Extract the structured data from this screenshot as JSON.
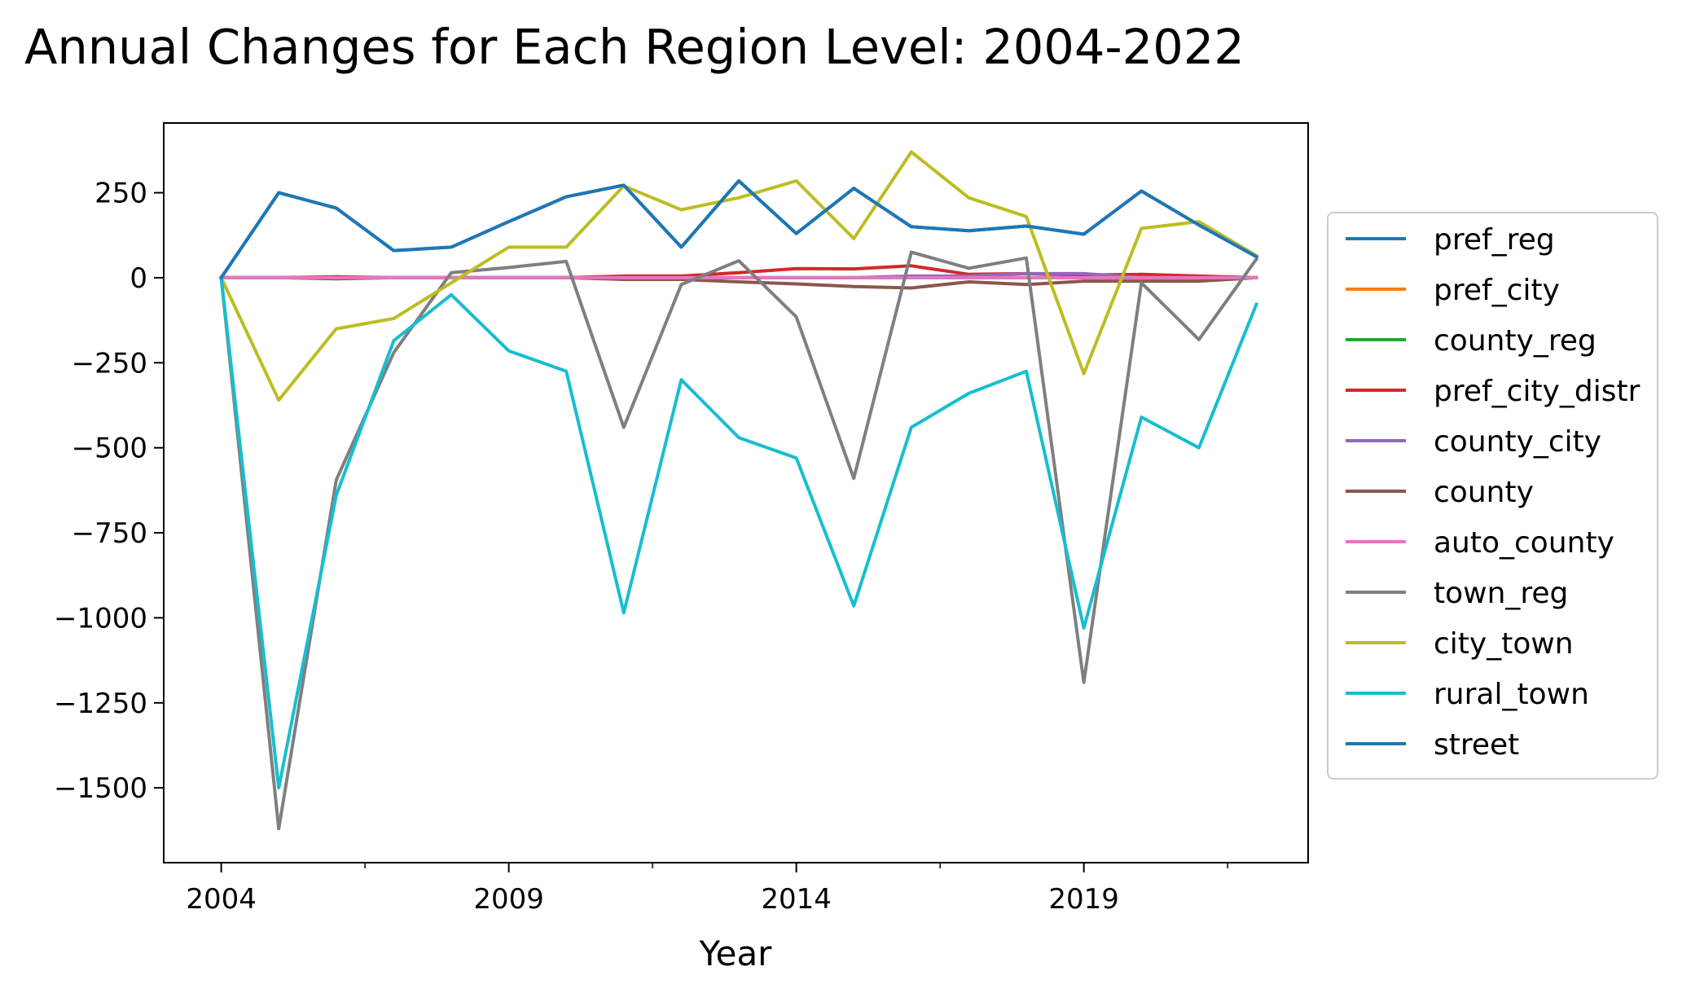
{
  "chart_data": {
    "type": "line",
    "title": "Annual Changes for Each Region Level: 2004-2022",
    "xlabel": "Year",
    "ylabel": "",
    "xlim": [
      2003,
      2022.9
    ],
    "ylim": [
      -1720,
      455
    ],
    "x_ticks": [
      2004,
      2009,
      2014,
      2019
    ],
    "x_minor_ticks": [
      2006.5,
      2011.5,
      2016.5,
      2021.5
    ],
    "y_ticks": [
      250,
      0,
      -250,
      -500,
      -750,
      -1000,
      -1250,
      -1500
    ],
    "y_tick_labels": [
      "250",
      "0",
      "−250",
      "−500",
      "−750",
      "−1000",
      "−1250",
      "−1500"
    ],
    "grid": false,
    "legend_position": "right (outside)",
    "x": [
      2004,
      2005,
      2006,
      2007,
      2008,
      2009,
      2010,
      2011,
      2012,
      2013,
      2014,
      2015,
      2016,
      2017,
      2018,
      2019,
      2020,
      2021,
      2022
    ],
    "series": [
      {
        "name": "pref_reg",
        "color": "#1f77b4",
        "values": [
          0,
          250,
          205,
          80,
          90,
          165,
          238,
          272,
          90,
          285,
          130,
          263,
          150,
          138,
          152,
          128,
          255,
          155,
          62
        ]
      },
      {
        "name": "pref_city",
        "color": "#ff7f0e",
        "values": [
          0,
          0,
          0,
          0,
          0,
          0,
          0,
          0,
          0,
          0,
          0,
          0,
          0,
          0,
          0,
          0,
          0,
          0,
          0
        ]
      },
      {
        "name": "county_reg",
        "color": "#2ca02c",
        "values": [
          0,
          0,
          0,
          0,
          0,
          0,
          0,
          0,
          0,
          0,
          0,
          0,
          0,
          0,
          0,
          0,
          0,
          0,
          0
        ]
      },
      {
        "name": "pref_city_distr",
        "color": "#d62728",
        "values": [
          0,
          0,
          3,
          0,
          0,
          0,
          0,
          5,
          5,
          15,
          27,
          26,
          35,
          10,
          12,
          8,
          10,
          5,
          0
        ]
      },
      {
        "name": "county_city",
        "color": "#9467bd",
        "values": [
          0,
          0,
          0,
          0,
          0,
          0,
          0,
          0,
          0,
          0,
          0,
          0,
          5,
          5,
          12,
          12,
          0,
          0,
          0
        ]
      },
      {
        "name": "county",
        "color": "#8c564b",
        "values": [
          0,
          0,
          -3,
          0,
          0,
          0,
          0,
          -5,
          -5,
          -12,
          -18,
          -26,
          -30,
          -12,
          -20,
          -10,
          -10,
          -10,
          0
        ]
      },
      {
        "name": "auto_county",
        "color": "#e377c2",
        "values": [
          0,
          0,
          0,
          0,
          0,
          0,
          0,
          0,
          0,
          0,
          0,
          0,
          0,
          0,
          0,
          0,
          0,
          0,
          0
        ]
      },
      {
        "name": "town_reg",
        "color": "#7f7f7f",
        "values": [
          0,
          -1620,
          -595,
          -220,
          15,
          30,
          48,
          -440,
          -20,
          50,
          -115,
          -590,
          75,
          28,
          58,
          -1190,
          -15,
          -182,
          55
        ]
      },
      {
        "name": "city_town",
        "color": "#bcbd22",
        "values": [
          0,
          -360,
          -150,
          -120,
          -15,
          90,
          90,
          270,
          200,
          235,
          285,
          115,
          370,
          235,
          180,
          -282,
          145,
          165,
          65
        ]
      },
      {
        "name": "rural_town",
        "color": "#17becf",
        "values": [
          0,
          -1500,
          -640,
          -185,
          -50,
          -215,
          -275,
          -985,
          -300,
          -470,
          -530,
          -965,
          -440,
          -340,
          -275,
          -1030,
          -410,
          -500,
          -78
        ]
      },
      {
        "name": "street",
        "color": "#1f77b4",
        "values": [
          0,
          250,
          205,
          80,
          90,
          165,
          238,
          272,
          90,
          285,
          130,
          263,
          150,
          138,
          152,
          128,
          255,
          155,
          62
        ]
      }
    ]
  }
}
